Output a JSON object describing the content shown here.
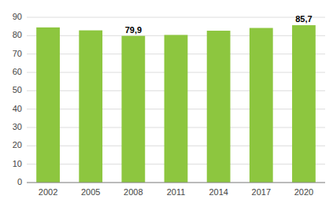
{
  "chart_data": {
    "type": "bar",
    "categories": [
      "2002",
      "2005",
      "2008",
      "2011",
      "2014",
      "2017",
      "2020"
    ],
    "values": [
      84.5,
      82.9,
      79.9,
      80.4,
      82.7,
      84.2,
      85.7
    ],
    "value_labels": [
      null,
      null,
      "79,9",
      null,
      null,
      null,
      "85,7"
    ],
    "color": "#8DC63F",
    "ylim": [
      0,
      90
    ],
    "yticks": [
      0,
      10,
      20,
      30,
      40,
      50,
      60,
      70,
      80,
      90
    ],
    "grid": true
  }
}
